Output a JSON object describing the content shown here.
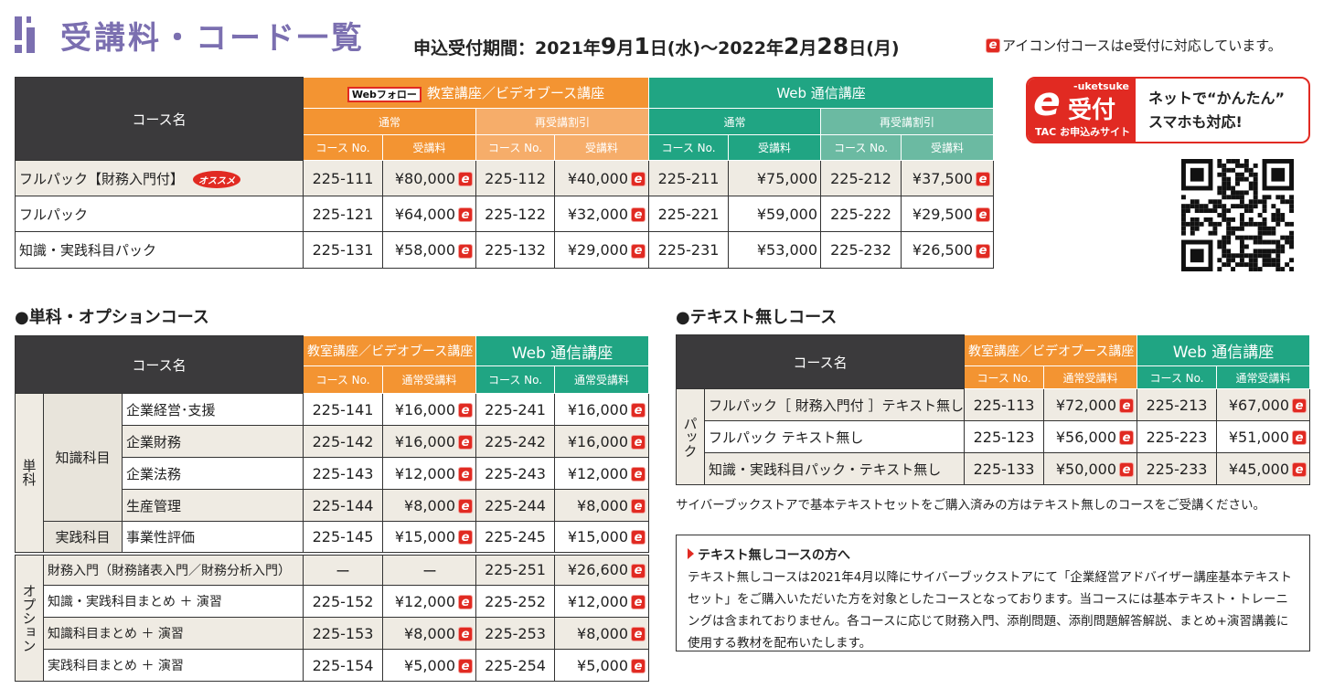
{
  "header": {
    "title": "受講料・コード一覧",
    "period_label": "申込受付期間：",
    "period_start_year": "2021年",
    "period_start_month": "9",
    "period_start_month_unit": "月",
    "period_start_day": "1",
    "period_start_rest": "日(水)～2022年",
    "period_end_month": "2",
    "period_end_month_unit": "月",
    "period_end_day": "28",
    "period_end_rest": "日(月)",
    "e_note": "アイコン付コースはe受付に対応しています。"
  },
  "ebanner": {
    "logo_top": "-uketsuke",
    "logo_main": "受付",
    "logo_e": "e",
    "logo_sub": "TAC お申込みサイト",
    "line1": "ネットで“かんたん”",
    "line2": "スマホも対応!"
  },
  "table1": {
    "col_name": "コース名",
    "web_follow": "Webフォロー",
    "group_classroom": "教室講座／ビデオブース講座",
    "group_web": "Web 通信講座",
    "sub_normal": "通常",
    "sub_retake": "再受講割引",
    "col_no": "コース No.",
    "col_fee": "受講料",
    "recommend": "オススメ",
    "rows": [
      {
        "name": "フルパック【財務入門付】",
        "c1": "225-111",
        "p1": "¥80,000",
        "c2": "225-112",
        "p2": "¥40,000",
        "c3": "225-211",
        "p3": "¥75,000",
        "c4": "225-212",
        "p4": "¥37,500"
      },
      {
        "name": "フルパック",
        "c1": "225-121",
        "p1": "¥64,000",
        "c2": "225-122",
        "p2": "¥32,000",
        "c3": "225-221",
        "p3": "¥59,000",
        "c4": "225-222",
        "p4": "¥29,500"
      },
      {
        "name": "知識・実践科目パック",
        "c1": "225-131",
        "p1": "¥58,000",
        "c2": "225-132",
        "p2": "¥29,000",
        "c3": "225-231",
        "p3": "¥53,000",
        "c4": "225-232",
        "p4": "¥26,500"
      }
    ]
  },
  "section2": {
    "title": "●単科・オプションコース",
    "col_name": "コース名",
    "group_classroom": "教室講座／ビデオブース講座",
    "group_web": "Web 通信講座",
    "col_no": "コース No.",
    "col_fee": "通常受講料",
    "group_single": "単科",
    "group_option": "オプション",
    "sub_knowledge": "知識科目",
    "sub_practice": "実践科目",
    "single_rows": [
      {
        "name": "企業経営･支援",
        "c1": "225-141",
        "p1": "¥16,000",
        "c2": "225-241",
        "p2": "¥16,000"
      },
      {
        "name": "企業財務",
        "c1": "225-142",
        "p1": "¥16,000",
        "c2": "225-242",
        "p2": "¥16,000"
      },
      {
        "name": "企業法務",
        "c1": "225-143",
        "p1": "¥12,000",
        "c2": "225-243",
        "p2": "¥12,000"
      },
      {
        "name": "生産管理",
        "c1": "225-144",
        "p1": "¥8,000",
        "c2": "225-244",
        "p2": "¥8,000"
      },
      {
        "name": "事業性評価",
        "c1": "225-145",
        "p1": "¥15,000",
        "c2": "225-245",
        "p2": "¥15,000"
      }
    ],
    "option_rows": [
      {
        "name": "財務入門（財務諸表入門／財務分析入門）",
        "c1": "ー",
        "p1": "ー",
        "c2": "225-251",
        "p2": "¥26,600",
        "e1": false
      },
      {
        "name": "知識・実践科目まとめ ＋ 演習",
        "c1": "225-152",
        "p1": "¥12,000",
        "c2": "225-252",
        "p2": "¥12,000",
        "e1": true
      },
      {
        "name": "知識科目まとめ ＋ 演習",
        "c1": "225-153",
        "p1": "¥8,000",
        "c2": "225-253",
        "p2": "¥8,000",
        "e1": true
      },
      {
        "name": "実践科目まとめ ＋ 演習",
        "c1": "225-154",
        "p1": "¥5,000",
        "c2": "225-254",
        "p2": "¥5,000",
        "e1": true
      }
    ]
  },
  "section3": {
    "title": "●テキスト無しコース",
    "col_name": "コース名",
    "group_classroom": "教室講座／ビデオブース講座",
    "group_web": "Web 通信講座",
    "col_no": "コース No.",
    "col_fee": "通常受講料",
    "group_pack": "パック",
    "rows": [
      {
        "name": "フルパック［ 財務入門付 ］テキスト無し",
        "c1": "225-113",
        "p1": "¥72,000",
        "c2": "225-213",
        "p2": "¥67,000"
      },
      {
        "name": "フルパック テキスト無し",
        "c1": "225-123",
        "p1": "¥56,000",
        "c2": "225-223",
        "p2": "¥51,000"
      },
      {
        "name": "知識・実践科目パック・テキスト無し",
        "c1": "225-133",
        "p1": "¥50,000",
        "c2": "225-233",
        "p2": "¥45,000"
      }
    ],
    "footnote": "サイバーブックストアで基本テキストセットをご購入済みの方はテキスト無しのコースをご受講ください。"
  },
  "note": {
    "title": "テキスト無しコースの方へ",
    "body": "テキスト無しコースは2021年4月以降にサイバーブックストアにて「企業経営アドバイザー講座基本テキストセット」をご購入いただいた方を対象としたコースとなっております。当コースには基本テキスト・トレーニングは含まれておりません。各コースに応じて財務入門、添削問題、添削問題解答解説、まとめ+演習講義に使用する教材を配布いたします。"
  },
  "colors": {
    "orange": "#f39432",
    "green": "#20a583",
    "purple": "#7b6fb0",
    "red": "#e12a22",
    "dark": "#3b3a3c"
  }
}
